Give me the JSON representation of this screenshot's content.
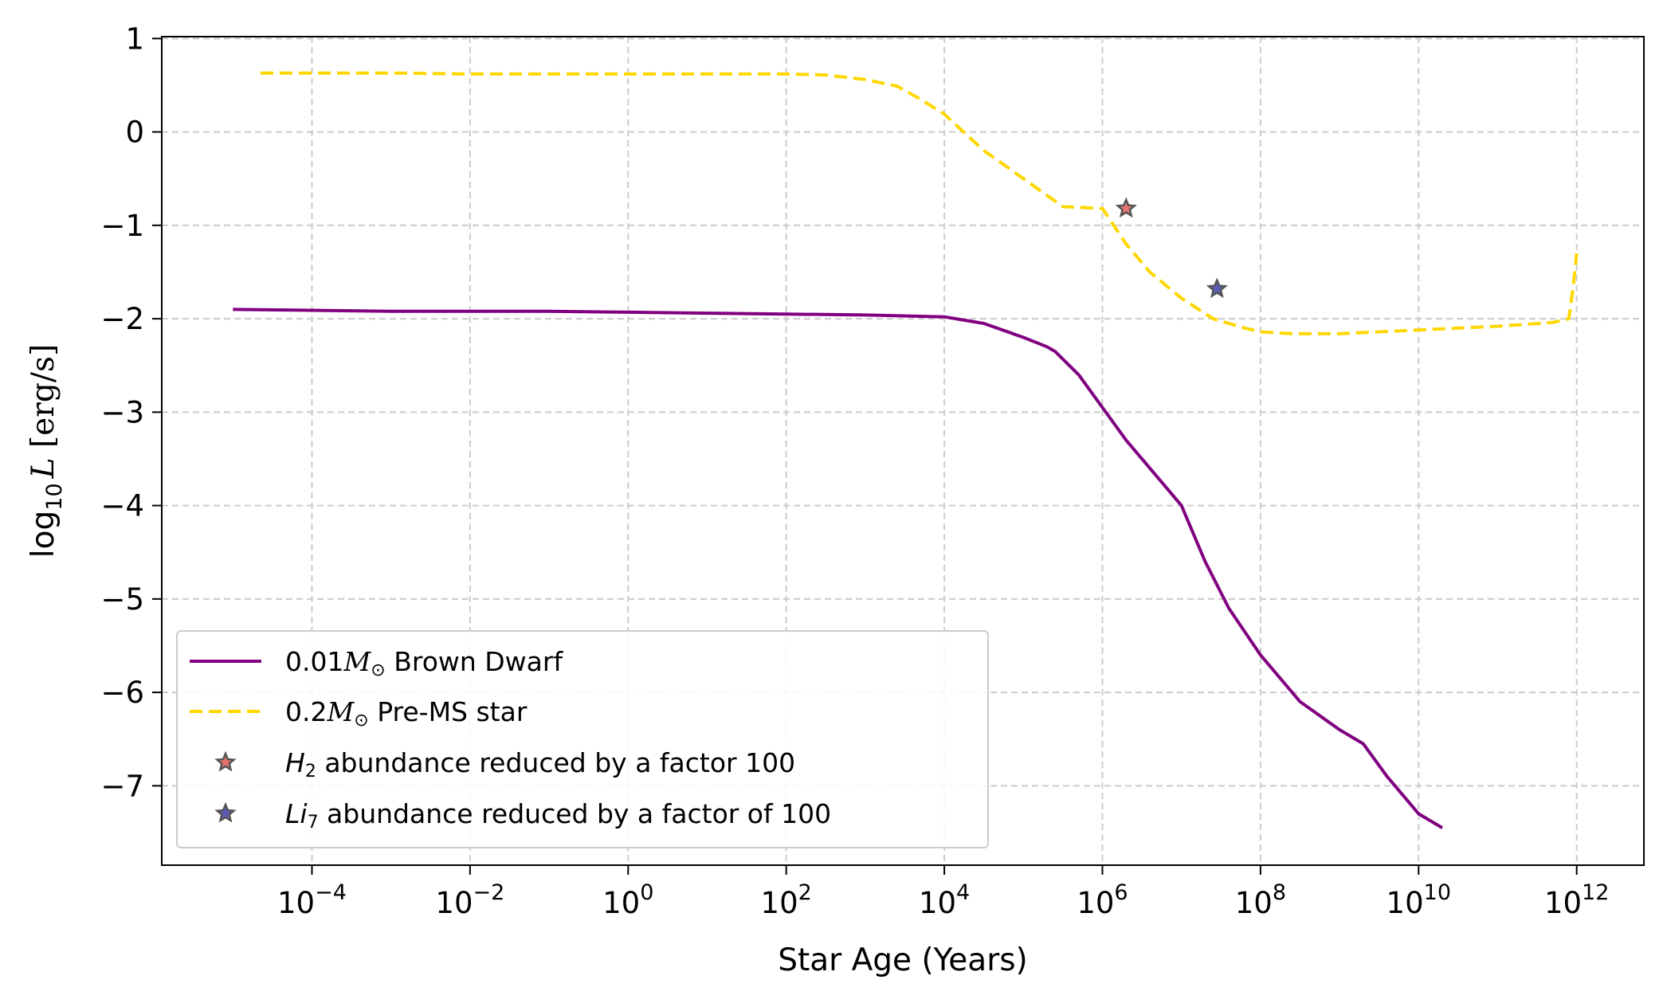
{
  "chart_data": {
    "type": "line",
    "xlabel": "Star Age (Years)",
    "ylabel": "log10 L [erg/s]",
    "xscale": "log",
    "xlim_log10": [
      -5.9,
      12.85
    ],
    "ylim": [
      -7.85,
      1.02
    ],
    "grid": true,
    "legend_position": "lower-left",
    "colors": {
      "brown_dwarf": "#800080",
      "pre_ms": "#FFD700",
      "h2_star": "#E57373",
      "li7_star": "#5C5CB8",
      "grid": "#cccccc"
    },
    "x_ticks": [
      {
        "log10": -4,
        "base": "10",
        "exp": "−4"
      },
      {
        "log10": -2,
        "base": "10",
        "exp": "−2"
      },
      {
        "log10": 0,
        "base": "10",
        "exp": "0"
      },
      {
        "log10": 2,
        "base": "10",
        "exp": "2"
      },
      {
        "log10": 4,
        "base": "10",
        "exp": "4"
      },
      {
        "log10": 6,
        "base": "10",
        "exp": "6"
      },
      {
        "log10": 8,
        "base": "10",
        "exp": "8"
      },
      {
        "log10": 10,
        "base": "10",
        "exp": "10"
      },
      {
        "log10": 12,
        "base": "10",
        "exp": "12"
      }
    ],
    "y_ticks": [
      {
        "value": 1,
        "label": "1"
      },
      {
        "value": 0,
        "label": "0"
      },
      {
        "value": -1,
        "label": "−1"
      },
      {
        "value": -2,
        "label": "−2"
      },
      {
        "value": -3,
        "label": "−3"
      },
      {
        "value": -4,
        "label": "−4"
      },
      {
        "value": -5,
        "label": "−5"
      },
      {
        "value": -6,
        "label": "−6"
      },
      {
        "value": -7,
        "label": "−7"
      }
    ],
    "series": [
      {
        "name": "0.01M⊙ Brown Dwarf",
        "style": "solid",
        "log10_age": [
          -5.0,
          -4.0,
          -3.0,
          -2.0,
          -1.0,
          0.0,
          1.0,
          2.0,
          3.0,
          4.0,
          4.5,
          5.0,
          5.3,
          5.4,
          5.7,
          6.0,
          6.3,
          6.6,
          7.0,
          7.3,
          7.6,
          8.0,
          8.5,
          9.0,
          9.3,
          9.6,
          10.0,
          10.3
        ],
        "log10_L": [
          -1.9,
          -1.91,
          -1.92,
          -1.92,
          -1.92,
          -1.93,
          -1.94,
          -1.95,
          -1.96,
          -1.98,
          -2.05,
          -2.2,
          -2.3,
          -2.35,
          -2.6,
          -2.95,
          -3.3,
          -3.6,
          -4.0,
          -4.6,
          -5.1,
          -5.6,
          -6.1,
          -6.4,
          -6.55,
          -6.9,
          -7.3,
          -7.45
        ]
      },
      {
        "name": "0.2M⊙ Pre-MS star",
        "style": "dashed",
        "log10_age": [
          -4.65,
          -3.0,
          -2.0,
          -1.0,
          0.0,
          1.0,
          2.0,
          2.5,
          3.0,
          3.4,
          3.7,
          4.0,
          4.5,
          5.0,
          5.5,
          6.0,
          6.3,
          6.6,
          7.0,
          7.4,
          7.8,
          8.0,
          8.4,
          9.0,
          10.0,
          11.0,
          11.7,
          11.9,
          11.95,
          12.0
        ],
        "log10_L": [
          0.63,
          0.63,
          0.62,
          0.62,
          0.62,
          0.62,
          0.62,
          0.61,
          0.56,
          0.49,
          0.35,
          0.19,
          -0.2,
          -0.5,
          -0.8,
          -0.82,
          -1.2,
          -1.5,
          -1.78,
          -2.0,
          -2.1,
          -2.14,
          -2.16,
          -2.16,
          -2.12,
          -2.08,
          -2.04,
          -2.0,
          -1.7,
          -1.3
        ]
      }
    ],
    "markers": [
      {
        "name": "H2 abundance reduced by a factor 100",
        "log10_age": 6.3,
        "log10_L": -0.82
      },
      {
        "name": "Li7 abundance reduced by a factor of 100",
        "log10_age": 7.45,
        "log10_L": -1.68
      }
    ],
    "legend": {
      "brown_dwarf_prefix": "0.01",
      "brown_dwarf_sym": "M",
      "brown_dwarf_sub": "⊙",
      "brown_dwarf_suffix": " Brown Dwarf",
      "pre_ms_prefix": "0.2",
      "pre_ms_sym": "M",
      "pre_ms_sub": "⊙",
      "pre_ms_suffix": " Pre-MS star",
      "h2_sym": "H",
      "h2_sub": "2",
      "h2_suffix": " abundance reduced by a factor 100",
      "li7_sym": "Li",
      "li7_sub": "7",
      "li7_suffix": " abundance reduced by a factor of 100"
    },
    "ylabel_parts": {
      "log": "log",
      "sub": "10",
      "var": "L",
      "unit": " [erg/s]"
    }
  }
}
